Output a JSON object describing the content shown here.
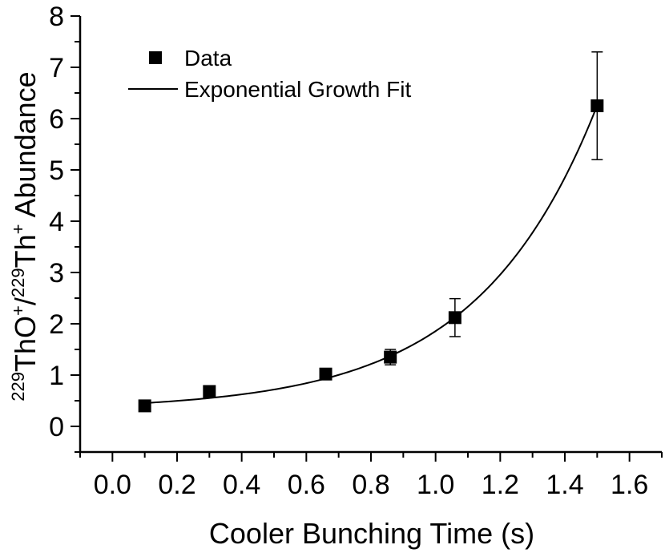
{
  "chart_data": {
    "type": "scatter",
    "title": "",
    "xlabel": "Cooler Bunching Time (s)",
    "ylabel": {
      "sup1": "229",
      "part1": "ThO",
      "sup2": "+",
      "part2": "/",
      "sup3": "229",
      "part3": "Th",
      "sup4": "+",
      "part4": " Abundance"
    },
    "xlim": [
      -0.1,
      1.7
    ],
    "ylim": [
      -0.5,
      8
    ],
    "x_ticks": [
      0.0,
      0.2,
      0.4,
      0.6,
      0.8,
      1.0,
      1.2,
      1.4,
      1.6
    ],
    "x_tick_labels": [
      "0.0",
      "0.2",
      "0.4",
      "0.6",
      "0.8",
      "1.0",
      "1.2",
      "1.4",
      "1.6"
    ],
    "y_ticks": [
      0,
      1,
      2,
      3,
      4,
      5,
      6,
      7,
      8
    ],
    "y_tick_labels": [
      "0",
      "1",
      "2",
      "3",
      "4",
      "5",
      "6",
      "7",
      "8"
    ],
    "grid": false,
    "legend_position": "top-left",
    "series": [
      {
        "name": "Data",
        "kind": "points",
        "marker": "square",
        "x": [
          0.1,
          0.3,
          0.66,
          0.86,
          1.06,
          1.5
        ],
        "y": [
          0.4,
          0.68,
          1.02,
          1.35,
          2.12,
          6.25
        ],
        "err": [
          0.06,
          0.08,
          0.1,
          0.15,
          0.37,
          1.05
        ]
      },
      {
        "name": "Exponential Growth Fit",
        "kind": "line",
        "model": "y = y0 + A*exp(x/t)",
        "params": {
          "y0": 0.32,
          "A": 0.103,
          "t": 0.37
        },
        "x_range": [
          0.1,
          1.5
        ]
      }
    ]
  }
}
